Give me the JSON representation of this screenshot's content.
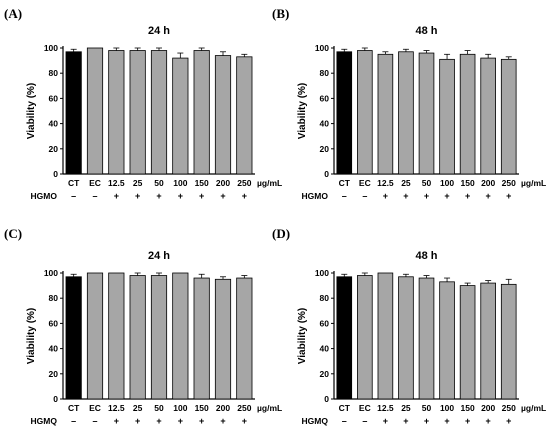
{
  "colors": {
    "control_bar": "#000000",
    "treated_bar": "#a6a6a6",
    "axis": "#000000",
    "bar_edge": "#000000"
  },
  "chart_data": [
    {
      "type": "bar",
      "panel": "(A)",
      "title": "24 h",
      "ylabel": "Viability (%)",
      "ylim": [
        0,
        100
      ],
      "yticks": [
        0,
        20,
        40,
        60,
        80,
        100
      ],
      "categories": [
        "CT",
        "EC",
        "12.5",
        "25",
        "50",
        "100",
        "150",
        "200",
        "250"
      ],
      "unit": "µg/mL",
      "treatment": "HGMO",
      "treatment_signs": [
        "–",
        "–",
        "+",
        "+",
        "+",
        "+",
        "+",
        "+",
        "+"
      ],
      "values": [
        97,
        100,
        98,
        98,
        98,
        92,
        98,
        94,
        93
      ],
      "errors": [
        2,
        0,
        2,
        2,
        2,
        4,
        2,
        3,
        2
      ],
      "bar_colors": [
        "#000000",
        "#a6a6a6",
        "#a6a6a6",
        "#a6a6a6",
        "#a6a6a6",
        "#a6a6a6",
        "#a6a6a6",
        "#a6a6a6",
        "#a6a6a6"
      ]
    },
    {
      "type": "bar",
      "panel": "(B)",
      "title": "48 h",
      "ylabel": "Viability (%)",
      "ylim": [
        0,
        100
      ],
      "yticks": [
        0,
        20,
        40,
        60,
        80,
        100
      ],
      "categories": [
        "CT",
        "EC",
        "12.5",
        "25",
        "50",
        "100",
        "150",
        "200",
        "250"
      ],
      "unit": "µg/mL",
      "treatment": "HGMO",
      "treatment_signs": [
        "–",
        "–",
        "+",
        "+",
        "+",
        "+",
        "+",
        "+",
        "+"
      ],
      "values": [
        97,
        98,
        95,
        97,
        96,
        91,
        95,
        92,
        91
      ],
      "errors": [
        2,
        2,
        2,
        2,
        2,
        4,
        3,
        3,
        2
      ],
      "bar_colors": [
        "#000000",
        "#a6a6a6",
        "#a6a6a6",
        "#a6a6a6",
        "#a6a6a6",
        "#a6a6a6",
        "#a6a6a6",
        "#a6a6a6",
        "#a6a6a6"
      ]
    },
    {
      "type": "bar",
      "panel": "(C)",
      "title": "24 h",
      "ylabel": "Viability (%)",
      "ylim": [
        0,
        100
      ],
      "yticks": [
        0,
        20,
        40,
        60,
        80,
        100
      ],
      "categories": [
        "CT",
        "EC",
        "12.5",
        "25",
        "50",
        "100",
        "150",
        "200",
        "250"
      ],
      "unit": "µg/mL",
      "treatment": "HGMQ",
      "treatment_signs": [
        "–",
        "–",
        "+",
        "+",
        "+",
        "+",
        "+",
        "+",
        "+"
      ],
      "values": [
        97,
        100,
        100,
        98,
        98,
        100,
        96,
        95,
        96
      ],
      "errors": [
        2,
        0,
        0,
        2,
        2,
        0,
        3,
        2,
        2
      ],
      "bar_colors": [
        "#000000",
        "#a6a6a6",
        "#a6a6a6",
        "#a6a6a6",
        "#a6a6a6",
        "#a6a6a6",
        "#a6a6a6",
        "#a6a6a6",
        "#a6a6a6"
      ]
    },
    {
      "type": "bar",
      "panel": "(D)",
      "title": "48 h",
      "ylabel": "Viability (%)",
      "ylim": [
        0,
        100
      ],
      "yticks": [
        0,
        20,
        40,
        60,
        80,
        100
      ],
      "categories": [
        "CT",
        "EC",
        "12.5",
        "25",
        "50",
        "100",
        "150",
        "200",
        "250"
      ],
      "unit": "µg/mL",
      "treatment": "HGMQ",
      "treatment_signs": [
        "–",
        "–",
        "+",
        "+",
        "+",
        "+",
        "+",
        "+",
        "+"
      ],
      "values": [
        97,
        98,
        100,
        97,
        96,
        93,
        90,
        92,
        91
      ],
      "errors": [
        2,
        2,
        0,
        2,
        2,
        3,
        2,
        2,
        4
      ],
      "bar_colors": [
        "#000000",
        "#a6a6a6",
        "#a6a6a6",
        "#a6a6a6",
        "#a6a6a6",
        "#a6a6a6",
        "#a6a6a6",
        "#a6a6a6",
        "#a6a6a6"
      ]
    }
  ]
}
